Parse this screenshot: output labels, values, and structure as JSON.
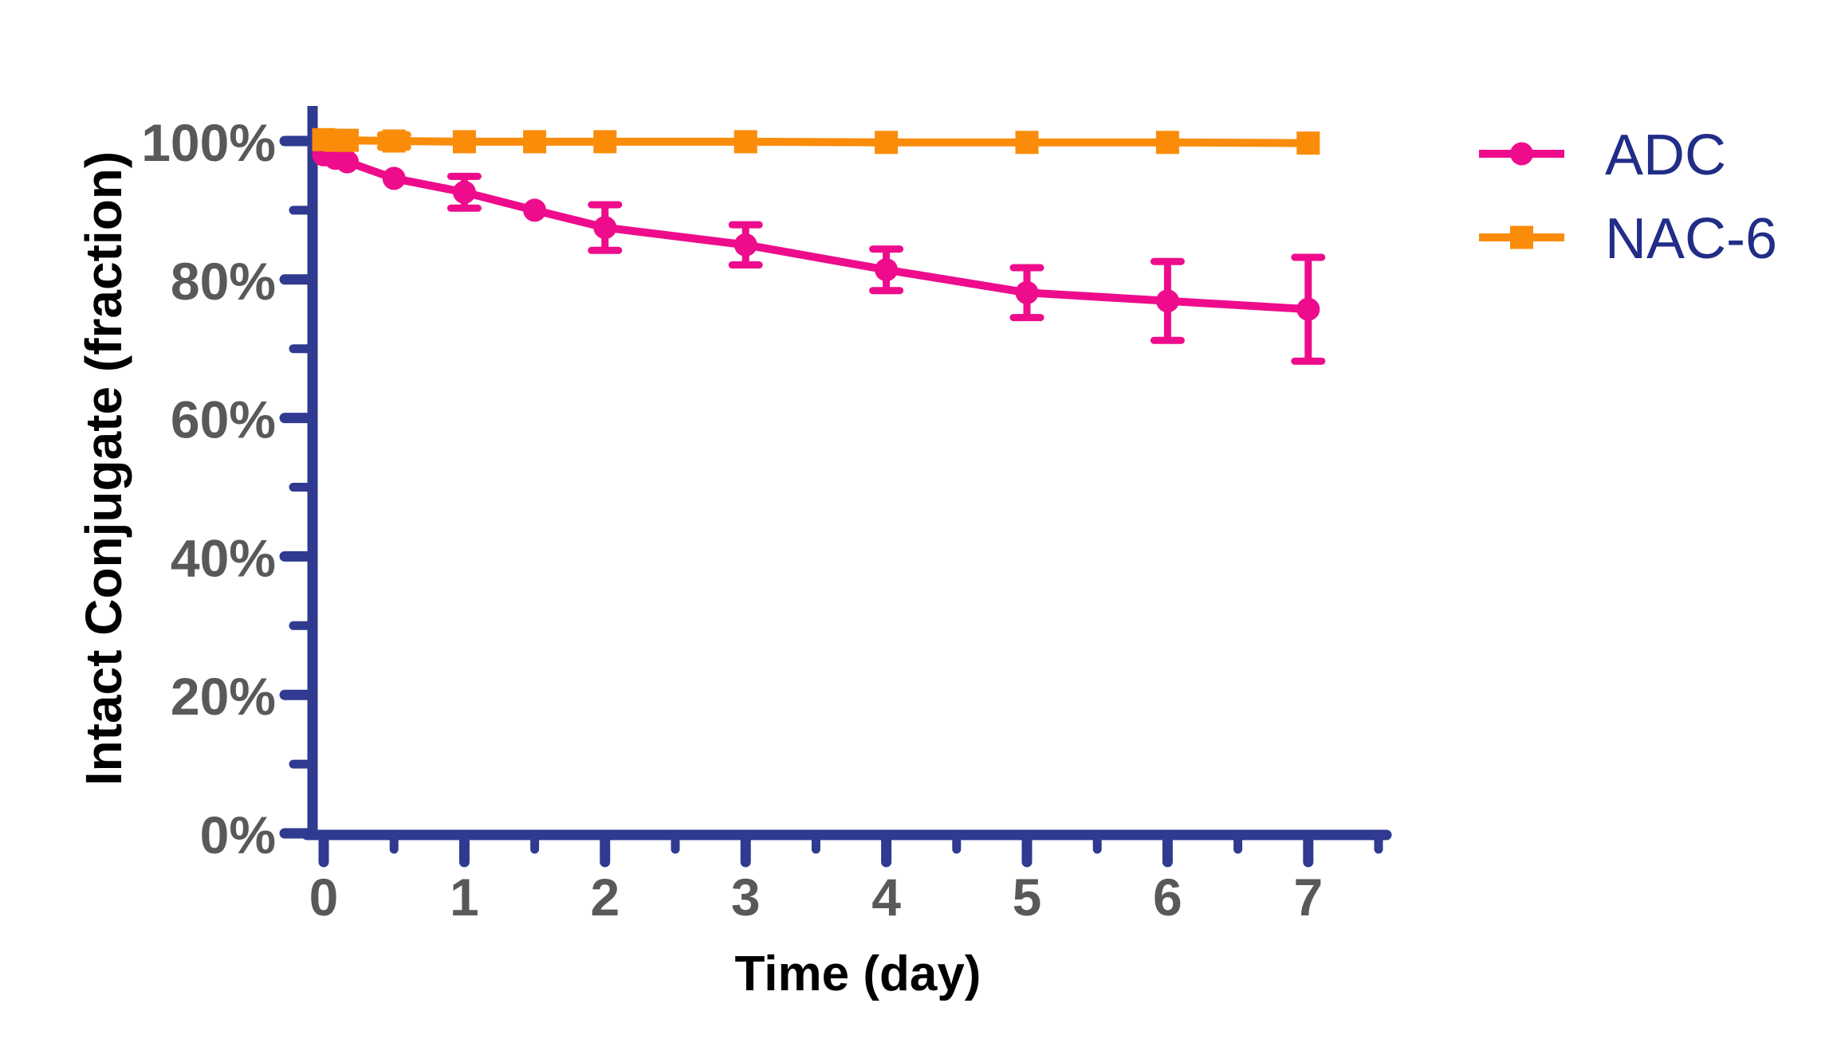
{
  "chart_data": {
    "type": "line",
    "title": "",
    "xlabel": "Time (day)",
    "ylabel": "Intact Conjugate (fraction)",
    "grid": false,
    "legend_position": "top-right",
    "x_axis": {
      "range": [
        0,
        7.5
      ],
      "major_ticks": [
        {
          "v": 0,
          "label": "0"
        },
        {
          "v": 1,
          "label": "1"
        },
        {
          "v": 2,
          "label": "2"
        },
        {
          "v": 3,
          "label": "3"
        },
        {
          "v": 4,
          "label": "4"
        },
        {
          "v": 5,
          "label": "5"
        },
        {
          "v": 6,
          "label": "6"
        },
        {
          "v": 7,
          "label": "7"
        }
      ],
      "minor_ticks": [
        0.5,
        1.5,
        2.5,
        3.5,
        4.5,
        5.5,
        6.5,
        7.5
      ]
    },
    "y_axis": {
      "range": [
        0,
        105
      ],
      "unit": "percent",
      "major_ticks": [
        {
          "v": 100,
          "label": "100%"
        },
        {
          "v": 80,
          "label": "80%"
        },
        {
          "v": 60,
          "label": "60%"
        },
        {
          "v": 40,
          "label": "40%"
        },
        {
          "v": 20,
          "label": "20%"
        },
        {
          "v": 0,
          "label": "0%"
        }
      ],
      "minor_ticks": [
        90,
        70,
        50,
        30,
        10
      ]
    },
    "series": [
      {
        "name": "ADC",
        "marker": "circle",
        "color": "#EE0C8C",
        "points": [
          {
            "x": 0,
            "y": 98.0,
            "err": 0
          },
          {
            "x": 0.083,
            "y": 97.5,
            "err": 0
          },
          {
            "x": 0.167,
            "y": 97.0,
            "err": 0
          },
          {
            "x": 0.5,
            "y": 94.6,
            "err": 0
          },
          {
            "x": 1,
            "y": 92.6,
            "err": 2.3
          },
          {
            "x": 1.5,
            "y": 90.0,
            "err": 0
          },
          {
            "x": 2,
            "y": 87.5,
            "err": 3.3
          },
          {
            "x": 3,
            "y": 85.0,
            "err": 2.9
          },
          {
            "x": 4,
            "y": 81.4,
            "err": 3.0
          },
          {
            "x": 5,
            "y": 78.1,
            "err": 3.6
          },
          {
            "x": 6,
            "y": 76.9,
            "err": 5.7
          },
          {
            "x": 7,
            "y": 75.7,
            "err": 7.5
          }
        ]
      },
      {
        "name": "NAC-6",
        "marker": "square",
        "color": "#FA8C0A",
        "points": [
          {
            "x": 0,
            "y": 100.2,
            "err": 0
          },
          {
            "x": 0.083,
            "y": 100.1,
            "err": 0
          },
          {
            "x": 0.167,
            "y": 100.1,
            "err": 0
          },
          {
            "x": 0.5,
            "y": 100.0,
            "err": 0.9
          },
          {
            "x": 1,
            "y": 99.9,
            "err": 0
          },
          {
            "x": 1.5,
            "y": 99.9,
            "err": 0
          },
          {
            "x": 2,
            "y": 99.9,
            "err": 0
          },
          {
            "x": 3,
            "y": 99.9,
            "err": 0
          },
          {
            "x": 4,
            "y": 99.8,
            "err": 0
          },
          {
            "x": 5,
            "y": 99.8,
            "err": 0
          },
          {
            "x": 6,
            "y": 99.8,
            "err": 0
          },
          {
            "x": 7,
            "y": 99.7,
            "err": 0
          }
        ]
      }
    ],
    "colors": {
      "axis": "#2F3A90",
      "tick_label": "#58595B",
      "axis_title": "#000000",
      "legend_text": "#212D87"
    }
  }
}
